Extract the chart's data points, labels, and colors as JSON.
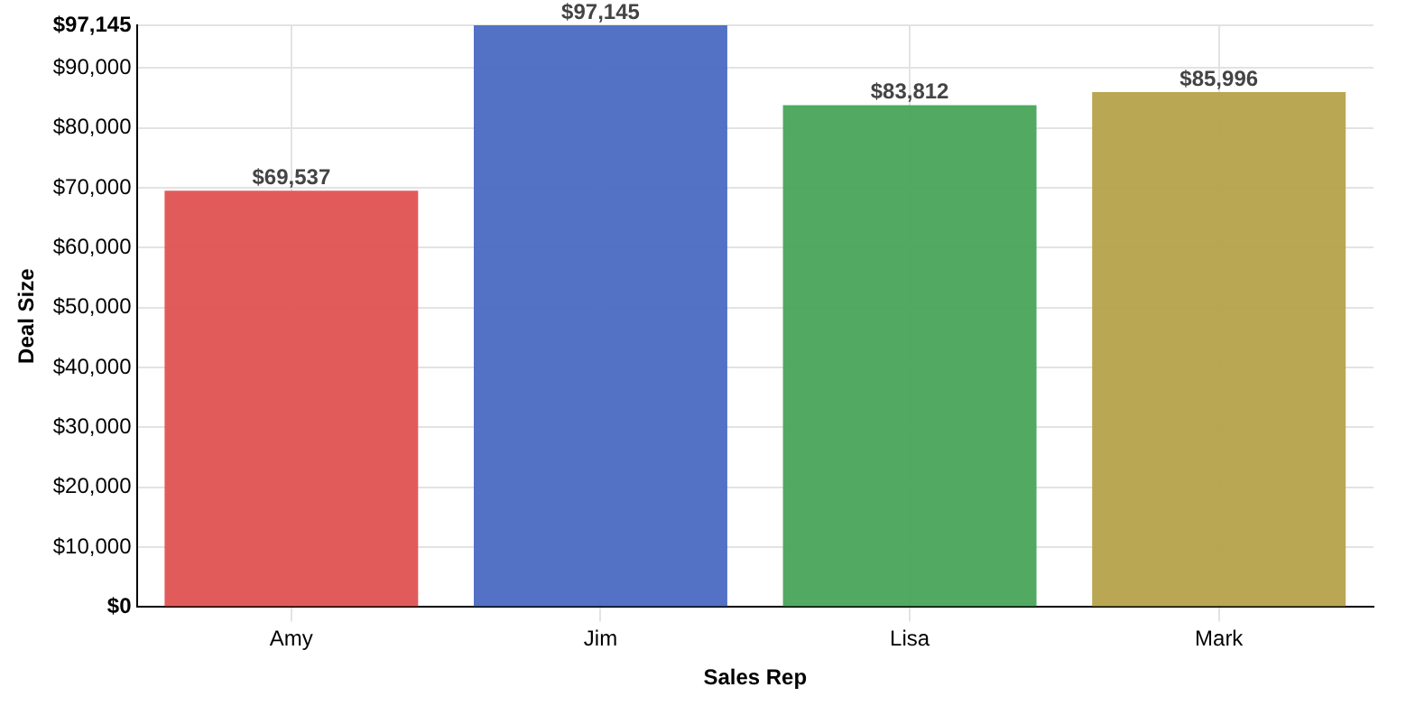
{
  "chart_data": {
    "type": "bar",
    "xlabel": "Sales Rep",
    "ylabel": "Deal Size",
    "categories": [
      "Amy",
      "Jim",
      "Lisa",
      "Mark"
    ],
    "values": [
      69537,
      97145,
      83812,
      85996
    ],
    "colors": [
      "#e05252",
      "#4a69c2",
      "#48a45a",
      "#b5a24a"
    ],
    "value_labels": [
      "$69,537",
      "$97,145",
      "$83,812",
      "$85,996"
    ],
    "ylim": [
      0,
      97145
    ],
    "yticks": [
      {
        "value": 0,
        "label": "$0"
      },
      {
        "value": 10000,
        "label": "$10,000"
      },
      {
        "value": 20000,
        "label": "$20,000"
      },
      {
        "value": 30000,
        "label": "$30,000"
      },
      {
        "value": 40000,
        "label": "$40,000"
      },
      {
        "value": 50000,
        "label": "$50,000"
      },
      {
        "value": 60000,
        "label": "$60,000"
      },
      {
        "value": 70000,
        "label": "$70,000"
      },
      {
        "value": 80000,
        "label": "$80,000"
      },
      {
        "value": 90000,
        "label": "$90,000"
      },
      {
        "value": 97145,
        "label": "$97,145"
      }
    ],
    "grid": true
  }
}
